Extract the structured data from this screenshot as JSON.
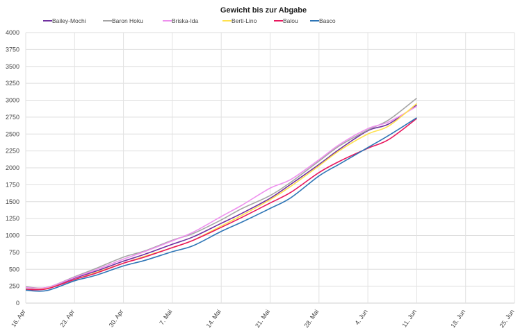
{
  "chart_data": {
    "type": "line",
    "title": "Gewicht  bis zur Abgabe",
    "xlabel": "",
    "ylabel": "",
    "ylim": [
      0,
      4000
    ],
    "yticks": [
      0,
      250,
      500,
      750,
      1000,
      1250,
      1500,
      1750,
      2000,
      2250,
      2500,
      2750,
      3000,
      3250,
      3500,
      3750,
      4000
    ],
    "xticks": [
      "16. Apr",
      "23. Apr",
      "30. Apr",
      "7. Mai",
      "14. Mai",
      "21. Mai",
      "28. Mai",
      "4. Jun",
      "11. Jun",
      "18. Jun",
      "25. Jun"
    ],
    "x": [
      "16. Apr",
      "19. Apr",
      "23. Apr",
      "26. Apr",
      "30. Apr",
      "3. Mai",
      "7. Mai",
      "10. Mai",
      "14. Mai",
      "17. Mai",
      "21. Mai",
      "24. Mai",
      "28. Mai",
      "31. Mai",
      "4. Jun",
      "7. Jun",
      "11. Jun"
    ],
    "grid": true,
    "legend_position": "top",
    "series": [
      {
        "name": "Bailey-Mochi",
        "color": "#7030a0",
        "values": [
          210,
          220,
          370,
          470,
          620,
          720,
          870,
          980,
          1180,
          1330,
          1550,
          1760,
          2050,
          2280,
          2550,
          2650,
          2930
        ]
      },
      {
        "name": "Baron Hoku",
        "color": "#a5a5a5",
        "values": [
          240,
          230,
          390,
          510,
          680,
          770,
          930,
          1030,
          1230,
          1400,
          1590,
          1790,
          2100,
          2330,
          2560,
          2710,
          3030
        ]
      },
      {
        "name": "Briska-Ida",
        "color": "#ee90ee",
        "values": [
          230,
          230,
          380,
          490,
          650,
          760,
          920,
          1050,
          1280,
          1450,
          1700,
          1830,
          2120,
          2350,
          2580,
          2680,
          2910
        ]
      },
      {
        "name": "Berti-Lino",
        "color": "#ffe14d",
        "values": [
          205,
          215,
          350,
          450,
          590,
          690,
          820,
          930,
          1140,
          1300,
          1530,
          1730,
          2030,
          2260,
          2500,
          2620,
          2950
        ]
      },
      {
        "name": "Balou",
        "color": "#e8175d",
        "values": [
          200,
          210,
          350,
          440,
          590,
          680,
          820,
          930,
          1120,
          1270,
          1480,
          1640,
          1930,
          2100,
          2290,
          2420,
          2730
        ]
      },
      {
        "name": "Basco",
        "color": "#2e75b6",
        "values": [
          190,
          185,
          330,
          410,
          550,
          630,
          760,
          850,
          1060,
          1200,
          1400,
          1560,
          1880,
          2060,
          2300,
          2480,
          2740
        ]
      }
    ]
  }
}
